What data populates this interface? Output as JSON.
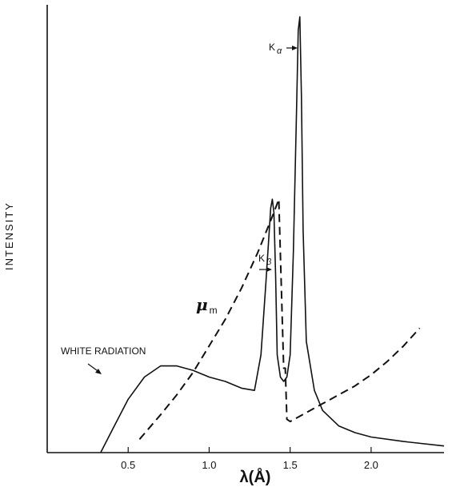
{
  "chart_data": {
    "type": "line",
    "title": "",
    "xlabel": "λ(Å)",
    "ylabel": "INTENSITY",
    "xlim": [
      0.0,
      2.45
    ],
    "ylim": [
      0,
      100
    ],
    "xticks": [
      0.5,
      1.0,
      1.5,
      2.0
    ],
    "xtick_labels": [
      "0.5",
      "1.0",
      "1.5",
      "2.0"
    ],
    "grid": false,
    "series": [
      {
        "name": "",
        "style": "solid",
        "x": [
          0.33,
          0.4,
          0.5,
          0.6,
          0.7,
          0.8,
          0.9,
          1.0,
          1.1,
          1.2,
          1.28,
          1.32,
          1.35,
          1.38,
          1.39,
          1.4,
          1.41,
          1.42,
          1.44,
          1.46,
          1.48,
          1.5,
          1.52,
          1.54,
          1.55,
          1.56,
          1.57,
          1.58,
          1.6,
          1.65,
          1.7,
          1.8,
          1.9,
          2.0,
          2.2,
          2.45
        ],
        "y": [
          0,
          5,
          12,
          17,
          19.5,
          19.5,
          18.5,
          17,
          16,
          14.5,
          14,
          22,
          38,
          55,
          57,
          54,
          40,
          22,
          17,
          16,
          17,
          22,
          45,
          78,
          95,
          98,
          80,
          50,
          25,
          14,
          9.5,
          6,
          4.5,
          3.5,
          2.5,
          1.5
        ]
      },
      {
        "name": "μm",
        "style": "dashed",
        "x": [
          0.57,
          0.7,
          0.8,
          0.9,
          1.0,
          1.1,
          1.2,
          1.3,
          1.4,
          1.43,
          1.46,
          1.47,
          1.48,
          1.5,
          1.6,
          1.7,
          1.8,
          1.9,
          2.0,
          2.1,
          2.2,
          2.3
        ],
        "y": [
          3,
          8.5,
          13,
          18,
          24,
          30,
          37,
          45,
          54,
          57,
          19,
          19,
          7.5,
          7,
          9,
          11,
          13,
          15,
          17.5,
          20.5,
          24,
          28
        ]
      }
    ],
    "annotations": {
      "white_radiation": "WHITE RADIATION",
      "k_alpha": "K",
      "k_alpha_sub": "α",
      "k_beta": "K",
      "k_beta_sub": "β",
      "mu": "μ",
      "mu_sub": "m"
    }
  }
}
